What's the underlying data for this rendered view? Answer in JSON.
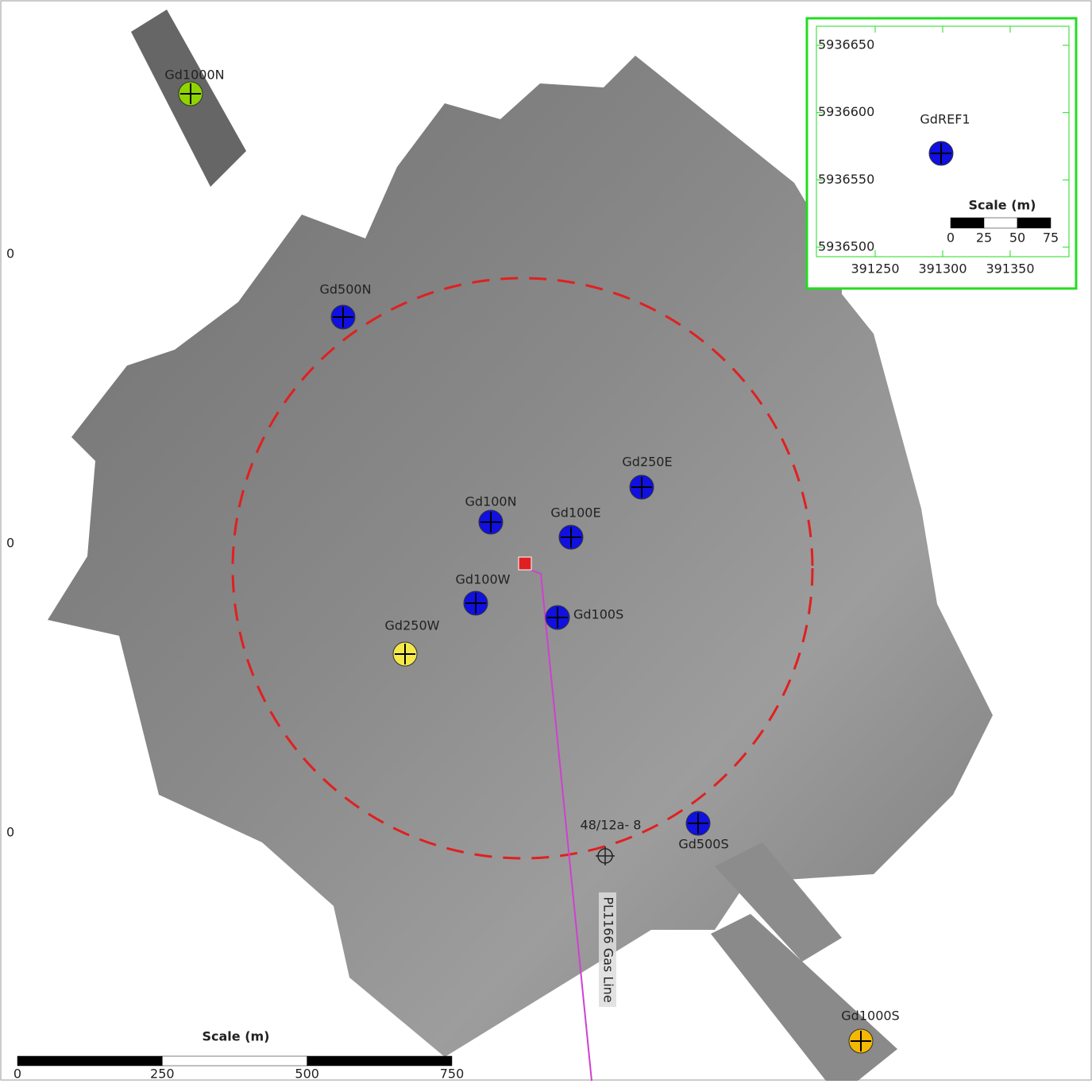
{
  "map": {
    "edge_labels": [
      "0",
      "0",
      "0"
    ],
    "stations": [
      {
        "label": "Gd1000N",
        "color": "#8fd400"
      },
      {
        "label": "Gd500N",
        "color": "#1010e0"
      },
      {
        "label": "Gd250E",
        "color": "#1010e0"
      },
      {
        "label": "Gd100N",
        "color": "#1010e0"
      },
      {
        "label": "Gd100E",
        "color": "#1010e0"
      },
      {
        "label": "Gd100W",
        "color": "#1010e0"
      },
      {
        "label": "Gd100S",
        "color": "#1010e0"
      },
      {
        "label": "Gd250W",
        "color": "#f5e94a"
      },
      {
        "label": "Gd500S",
        "color": "#1010e0"
      },
      {
        "label": "Gd1000S",
        "color": "#f5b800"
      }
    ],
    "well": "48/12a- 8",
    "pipeline": "PL1166 Gas Line",
    "scale": {
      "title": "Scale (m)",
      "ticks": [
        0,
        250,
        500,
        750
      ]
    },
    "inset": {
      "station": {
        "label": "GdREF1",
        "color": "#1010e0"
      },
      "yticks": [
        5936650,
        5936600,
        5936550,
        5936500
      ],
      "xticks": [
        391250,
        391300,
        391350
      ],
      "scale": {
        "title": "Scale (m)",
        "ticks": [
          0,
          25,
          50,
          75
        ]
      }
    }
  }
}
